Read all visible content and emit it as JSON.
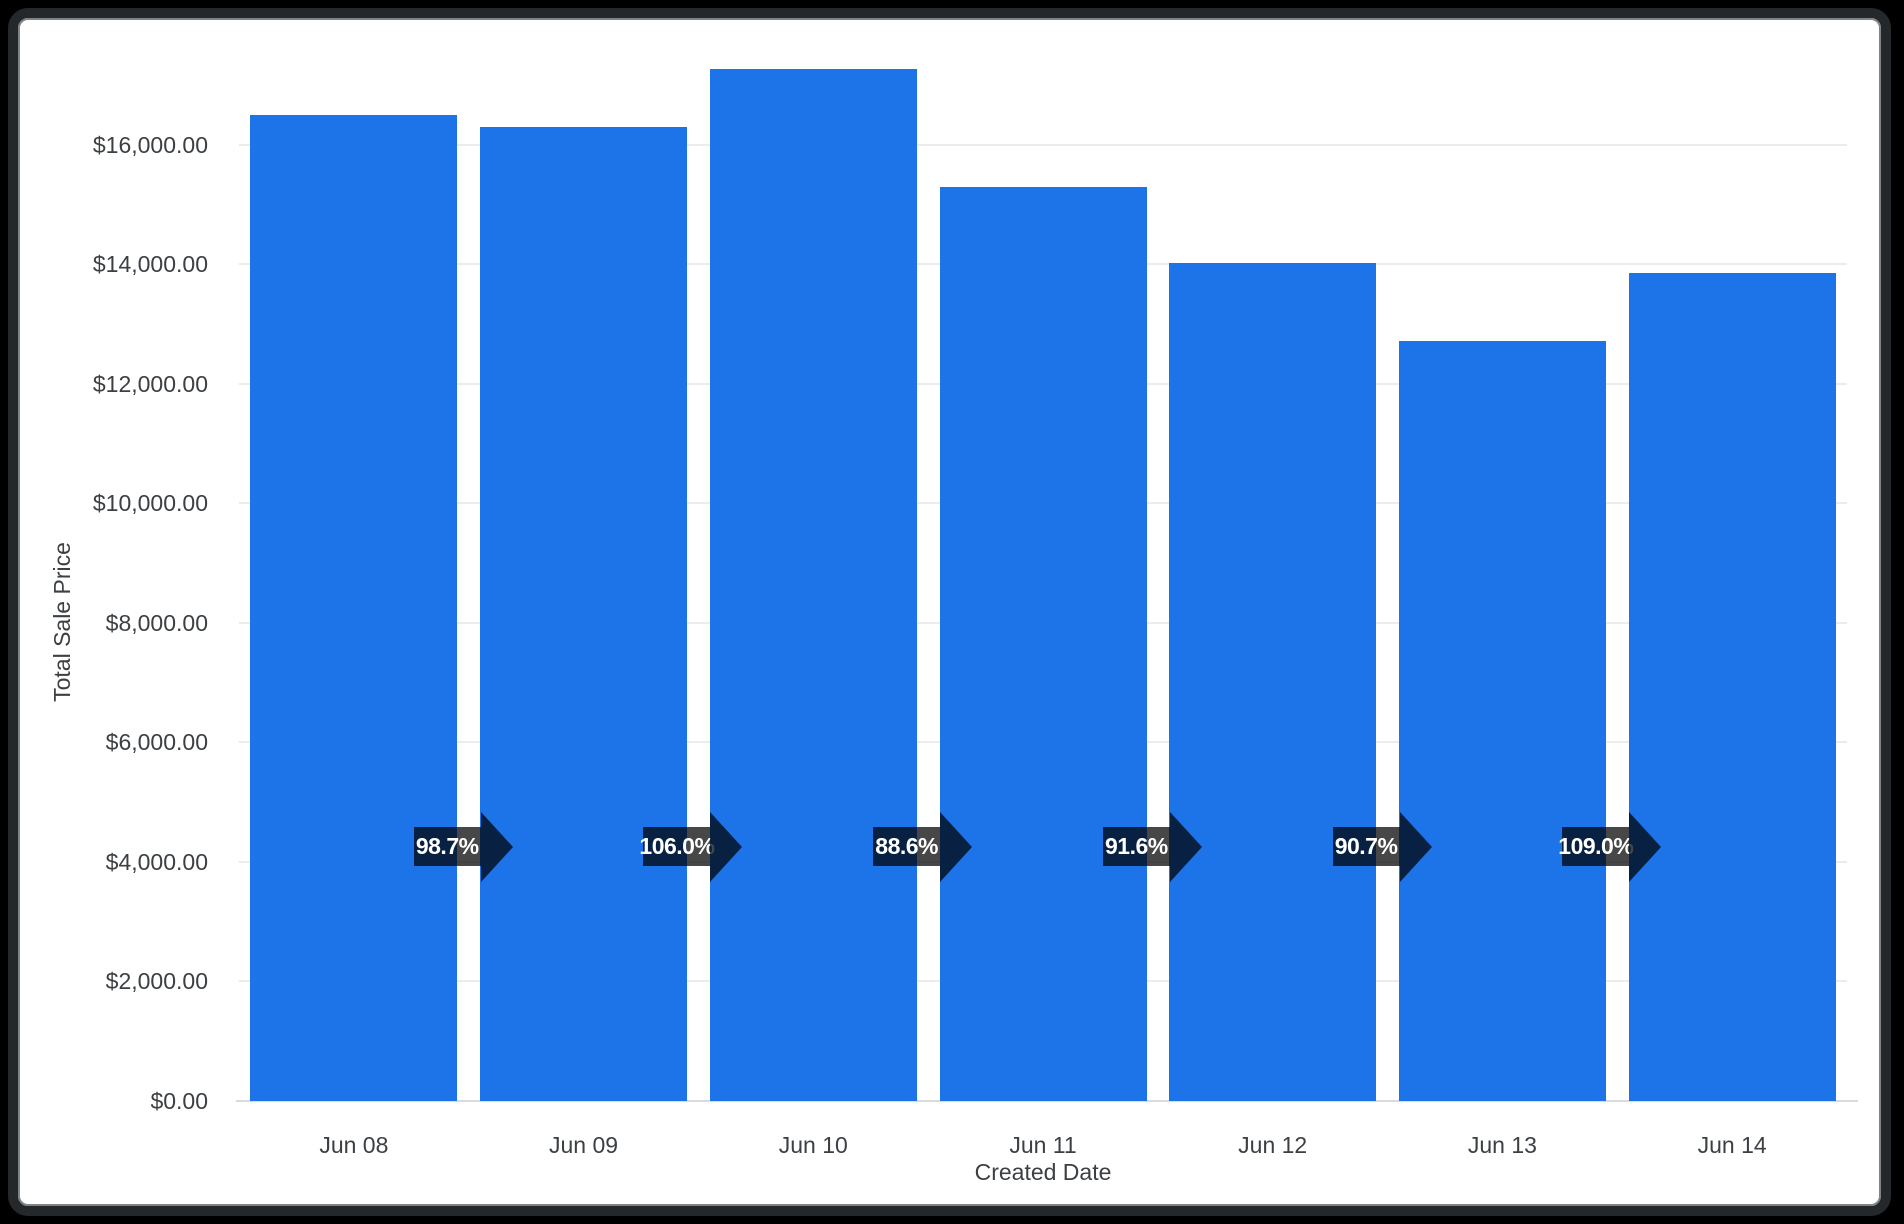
{
  "frame": {
    "background_color": "#000000",
    "card_background": "#ffffff",
    "card_border_color": "#24282b"
  },
  "chart_data": {
    "type": "bar",
    "title": "",
    "xlabel": "Created Date",
    "ylabel": "Total Sale Price",
    "categories": [
      "Jun 08",
      "Jun 09",
      "Jun 10",
      "Jun 11",
      "Jun 12",
      "Jun 13",
      "Jun 14"
    ],
    "values": [
      16500,
      16285,
      17262,
      15294,
      14010,
      12706,
      13850
    ],
    "series_name": "Total Sale Price",
    "y_ticks": [
      {
        "value": 0,
        "label": "$0.00"
      },
      {
        "value": 2000,
        "label": "$2,000.00"
      },
      {
        "value": 4000,
        "label": "$4,000.00"
      },
      {
        "value": 6000,
        "label": "$6,000.00"
      },
      {
        "value": 8000,
        "label": "$8,000.00"
      },
      {
        "value": 10000,
        "label": "$10,000.00"
      },
      {
        "value": 12000,
        "label": "$12,000.00"
      },
      {
        "value": 14000,
        "label": "$14,000.00"
      },
      {
        "value": 16000,
        "label": "$16,000.00"
      }
    ],
    "ylim": [
      0,
      17600
    ],
    "grid": true,
    "legend": "none",
    "bar_color": "#1d73e8",
    "axis_text_color": "#3c4043",
    "gridline_color": "#ececec",
    "change_arrows": {
      "description": "period-over-period percent, shown between adjacent bars",
      "labels": [
        "98.7%",
        "106.0%",
        "88.6%",
        "91.6%",
        "90.7%",
        "109.0%"
      ],
      "badge_color": "rgba(0,0,0,0.72)",
      "text_color": "#ffffff"
    }
  }
}
